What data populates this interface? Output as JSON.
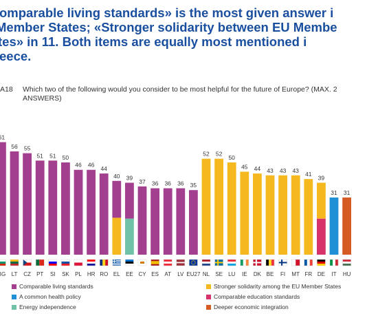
{
  "headline": {
    "line1": "omparable living standards» is the most given answer i",
    "line2": " Member States; «Stronger solidarity between EU Membe",
    "line3": "tes» in 11. Both items are equally most mentioned i",
    "line4": "eece."
  },
  "question": {
    "number": "A18",
    "text": "Which two of the following would you consider to be most helpful for the future of Europe? (MAX. 2 ANSWERS)"
  },
  "colors": {
    "comparable_living_standards": "#a33f8f",
    "stronger_solidarity": "#f6b81f",
    "common_health_policy": "#1f8fd6",
    "comparable_education_standards": "#d6336b",
    "energy_independence": "#6fc2a8",
    "deeper_economic_integration": "#d65a23"
  },
  "legend": [
    {
      "key": "comparable_living_standards",
      "label": "Comparable living standards"
    },
    {
      "key": "stronger_solidarity",
      "label": "Stronger solidarity among the EU Member States"
    },
    {
      "key": "common_health_policy",
      "label": "A common health policy"
    },
    {
      "key": "comparable_education_standards",
      "label": "Comparable education standards"
    },
    {
      "key": "energy_independence",
      "label": "Energy independence"
    },
    {
      "key": "deeper_economic_integration",
      "label": "Deeper economic integration"
    }
  ],
  "chart_data": {
    "type": "bar",
    "ylim": [
      0,
      65
    ],
    "grid": false,
    "categories": [
      "BG",
      "LT",
      "CZ",
      "PT",
      "SI",
      "SK",
      "PL",
      "HR",
      "RO",
      "EL",
      "EE",
      "CY",
      "ES",
      "AT",
      "LV",
      "EU27",
      "NL",
      "SE",
      "LU",
      "IE",
      "DK",
      "BE",
      "FI",
      "MT",
      "FR",
      "DE",
      "IT",
      "HU"
    ],
    "values": [
      61,
      56,
      55,
      51,
      51,
      50,
      46,
      46,
      44,
      40,
      39,
      37,
      36,
      36,
      36,
      35,
      52,
      52,
      50,
      45,
      44,
      43,
      43,
      43,
      41,
      39,
      31,
      31
    ],
    "primary": [
      "comparable_living_standards",
      "comparable_living_standards",
      "comparable_living_standards",
      "comparable_living_standards",
      "comparable_living_standards",
      "comparable_living_standards",
      "comparable_living_standards",
      "comparable_living_standards",
      "comparable_living_standards",
      "comparable_living_standards",
      "comparable_living_standards",
      "comparable_living_standards",
      "comparable_living_standards",
      "comparable_living_standards",
      "comparable_living_standards",
      "comparable_living_standards",
      "stronger_solidarity",
      "stronger_solidarity",
      "stronger_solidarity",
      "stronger_solidarity",
      "stronger_solidarity",
      "stronger_solidarity",
      "stronger_solidarity",
      "stronger_solidarity",
      "stronger_solidarity",
      "stronger_solidarity",
      "common_health_policy",
      "deeper_economic_integration"
    ],
    "tied_with": [
      null,
      null,
      null,
      null,
      null,
      null,
      null,
      null,
      null,
      "stronger_solidarity",
      "energy_independence",
      null,
      null,
      null,
      null,
      null,
      null,
      null,
      null,
      null,
      null,
      null,
      null,
      null,
      null,
      "comparable_education_standards",
      null,
      null
    ],
    "flags": {
      "BG": {
        "type": "h",
        "colors": [
          "#ffffff",
          "#00966e",
          "#d62612"
        ]
      },
      "LT": {
        "type": "h",
        "colors": [
          "#fdb913",
          "#006a44",
          "#c1272d"
        ]
      },
      "CZ": {
        "type": "cz",
        "colors": [
          "#ffffff",
          "#d7141a",
          "#11457e"
        ]
      },
      "PT": {
        "type": "pt",
        "colors": [
          "#046a38",
          "#da291c"
        ]
      },
      "SI": {
        "type": "h",
        "colors": [
          "#ffffff",
          "#0000ff",
          "#ff0000"
        ]
      },
      "SK": {
        "type": "h",
        "colors": [
          "#ffffff",
          "#0b4ea2",
          "#ee1c25"
        ]
      },
      "PL": {
        "type": "h",
        "colors": [
          "#ffffff",
          "#dc143c"
        ]
      },
      "HR": {
        "type": "h",
        "colors": [
          "#ff0000",
          "#ffffff",
          "#171796"
        ]
      },
      "RO": {
        "type": "v",
        "colors": [
          "#002b7f",
          "#fcd116",
          "#ce1126"
        ]
      },
      "EL": {
        "type": "gr",
        "colors": [
          "#0d5eaf",
          "#ffffff"
        ]
      },
      "EE": {
        "type": "h",
        "colors": [
          "#0072ce",
          "#000000",
          "#ffffff"
        ]
      },
      "CY": {
        "type": "cy",
        "colors": [
          "#ffffff",
          "#d57800"
        ]
      },
      "ES": {
        "type": "es",
        "colors": [
          "#aa151b",
          "#f1bf00"
        ]
      },
      "AT": {
        "type": "h",
        "colors": [
          "#ed2939",
          "#ffffff",
          "#ed2939"
        ]
      },
      "LV": {
        "type": "lv",
        "colors": [
          "#9e3039",
          "#ffffff"
        ]
      },
      "EU27": {
        "type": "eu",
        "colors": [
          "#003399",
          "#ffcc00"
        ]
      },
      "NL": {
        "type": "h",
        "colors": [
          "#ae1c28",
          "#ffffff",
          "#21468b"
        ]
      },
      "SE": {
        "type": "nordic",
        "colors": [
          "#006aa7",
          "#fecc00"
        ]
      },
      "LU": {
        "type": "h",
        "colors": [
          "#ed2939",
          "#ffffff",
          "#00a1de"
        ]
      },
      "IE": {
        "type": "v",
        "colors": [
          "#169b62",
          "#ffffff",
          "#ff883e"
        ]
      },
      "DK": {
        "type": "nordic",
        "colors": [
          "#c8102e",
          "#ffffff"
        ]
      },
      "BE": {
        "type": "v",
        "colors": [
          "#000000",
          "#fdda24",
          "#ef3340"
        ]
      },
      "FI": {
        "type": "nordic",
        "colors": [
          "#ffffff",
          "#003580"
        ]
      },
      "MT": {
        "type": "v",
        "colors": [
          "#ffffff",
          "#cf142b"
        ]
      },
      "FR": {
        "type": "v",
        "colors": [
          "#0055a4",
          "#ffffff",
          "#ef4135"
        ]
      },
      "DE": {
        "type": "h",
        "colors": [
          "#000000",
          "#dd0000",
          "#ffce00"
        ]
      },
      "IT": {
        "type": "v",
        "colors": [
          "#009246",
          "#ffffff",
          "#ce2b37"
        ]
      },
      "HU": {
        "type": "h",
        "colors": [
          "#ce2939",
          "#ffffff",
          "#477050"
        ]
      }
    }
  }
}
